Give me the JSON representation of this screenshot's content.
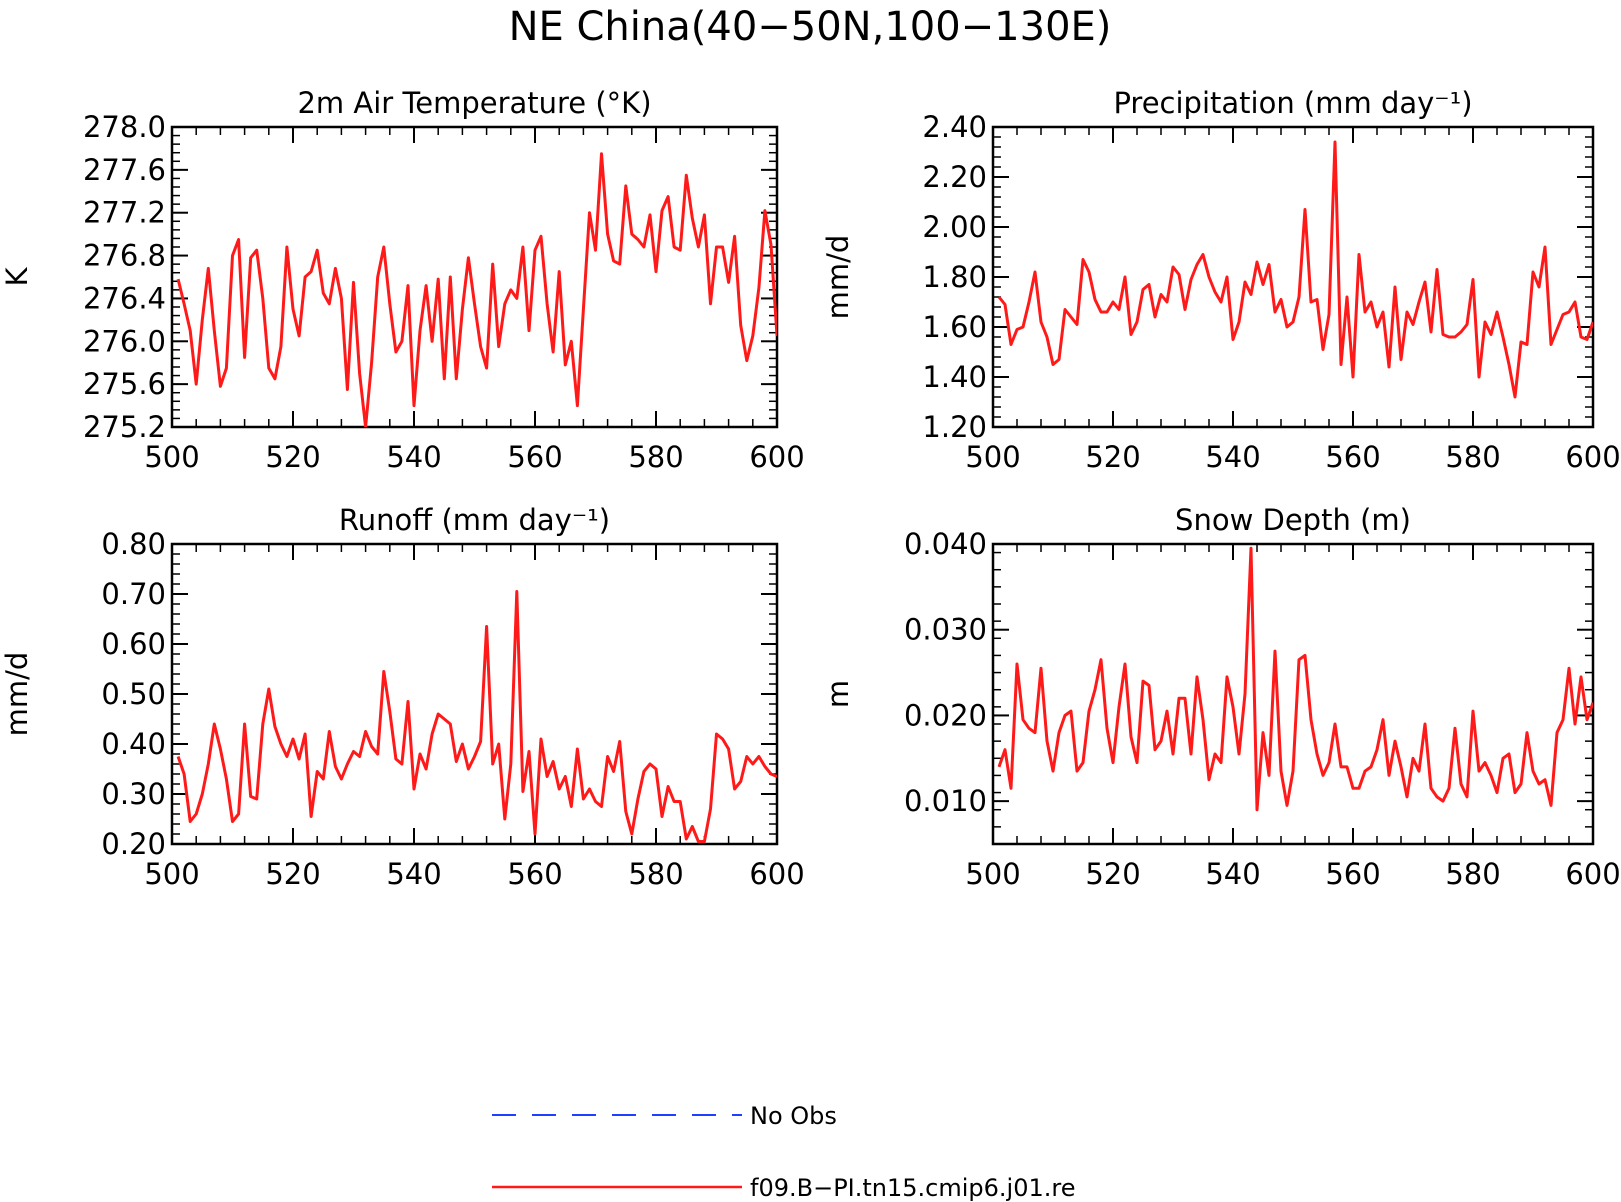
{
  "title": "NE China(40−50N,100−130E)",
  "legend": [
    {
      "label": "No Obs",
      "color": "#1f3fff",
      "dashed": true
    },
    {
      "label": "f09.B−PI.tn15.cmip6.j01.re",
      "color": "#ff1a1a",
      "dashed": false
    }
  ],
  "chart_data": [
    {
      "type": "line",
      "title": "2m Air Temperature (°K)",
      "xlabel": "",
      "ylabel": "K",
      "xlim": [
        500,
        600
      ],
      "ylim": [
        275.2,
        278.0
      ],
      "xticks": [
        "500",
        "520",
        "540",
        "560",
        "580",
        "600"
      ],
      "yticks": [
        "275.2",
        "275.6",
        "276.0",
        "276.4",
        "276.8",
        "277.2",
        "277.6",
        "278.0"
      ],
      "series": [
        {
          "name": "f09.B−PI.tn15.cmip6.j01.re",
          "color": "#ff1a1a",
          "x": [
            501,
            502,
            503,
            504,
            505,
            506,
            507,
            508,
            509,
            510,
            511,
            512,
            513,
            514,
            515,
            516,
            517,
            518,
            519,
            520,
            521,
            522,
            523,
            524,
            525,
            526,
            527,
            528,
            529,
            530,
            531,
            532,
            533,
            534,
            535,
            536,
            537,
            538,
            539,
            540,
            541,
            542,
            543,
            544,
            545,
            546,
            547,
            548,
            549,
            550,
            551,
            552,
            553,
            554,
            555,
            556,
            557,
            558,
            559,
            560,
            561,
            562,
            563,
            564,
            565,
            566,
            567,
            568,
            569,
            570,
            571,
            572,
            573,
            574,
            575,
            576,
            577,
            578,
            579,
            580,
            581,
            582,
            583,
            584,
            585,
            586,
            587,
            588,
            589,
            590,
            591,
            592,
            593,
            594,
            595,
            596,
            597,
            598,
            599,
            600
          ],
          "y": [
            276.58,
            276.35,
            276.1,
            275.6,
            276.2,
            276.68,
            276.1,
            275.58,
            275.75,
            276.8,
            276.95,
            275.85,
            276.78,
            276.85,
            276.4,
            275.75,
            275.65,
            275.95,
            276.88,
            276.3,
            276.05,
            276.6,
            276.65,
            276.85,
            276.45,
            276.35,
            276.68,
            276.4,
            275.55,
            276.55,
            275.7,
            275.2,
            275.8,
            276.6,
            276.88,
            276.35,
            275.9,
            276.0,
            276.52,
            275.4,
            276.1,
            276.52,
            276.0,
            276.58,
            275.65,
            276.6,
            275.65,
            276.3,
            276.78,
            276.35,
            275.95,
            275.75,
            276.72,
            275.95,
            276.35,
            276.48,
            276.4,
            276.88,
            276.1,
            276.85,
            276.98,
            276.35,
            275.9,
            276.65,
            275.78,
            276.0,
            275.4,
            276.3,
            277.2,
            276.85,
            277.75,
            277.0,
            276.75,
            276.72,
            277.45,
            277.0,
            276.95,
            276.88,
            277.18,
            276.65,
            277.22,
            277.35,
            276.88,
            276.85,
            277.55,
            277.15,
            276.88,
            277.18,
            276.35,
            276.88,
            276.88,
            276.55,
            276.98,
            276.15,
            275.82,
            276.05,
            276.5,
            277.22,
            276.9,
            276.05
          ]
        }
      ]
    },
    {
      "type": "line",
      "title": "Precipitation (mm day⁻¹)",
      "xlabel": "",
      "ylabel": "mm/d",
      "xlim": [
        500,
        600
      ],
      "ylim": [
        1.2,
        2.4
      ],
      "xticks": [
        "500",
        "520",
        "540",
        "560",
        "580",
        "600"
      ],
      "yticks": [
        "1.20",
        "1.40",
        "1.60",
        "1.80",
        "2.00",
        "2.20",
        "2.40"
      ],
      "series": [
        {
          "name": "f09.B−PI.tn15.cmip6.j01.re",
          "color": "#ff1a1a",
          "x": [
            501,
            502,
            503,
            504,
            505,
            506,
            507,
            508,
            509,
            510,
            511,
            512,
            513,
            514,
            515,
            516,
            517,
            518,
            519,
            520,
            521,
            522,
            523,
            524,
            525,
            526,
            527,
            528,
            529,
            530,
            531,
            532,
            533,
            534,
            535,
            536,
            537,
            538,
            539,
            540,
            541,
            542,
            543,
            544,
            545,
            546,
            547,
            548,
            549,
            550,
            551,
            552,
            553,
            554,
            555,
            556,
            557,
            558,
            559,
            560,
            561,
            562,
            563,
            564,
            565,
            566,
            567,
            568,
            569,
            570,
            571,
            572,
            573,
            574,
            575,
            576,
            577,
            578,
            579,
            580,
            581,
            582,
            583,
            584,
            585,
            586,
            587,
            588,
            589,
            590,
            591,
            592,
            593,
            594,
            595,
            596,
            597,
            598,
            599,
            600
          ],
          "y": [
            1.72,
            1.69,
            1.53,
            1.59,
            1.6,
            1.7,
            1.82,
            1.62,
            1.56,
            1.45,
            1.47,
            1.67,
            1.64,
            1.61,
            1.87,
            1.82,
            1.71,
            1.66,
            1.66,
            1.7,
            1.67,
            1.8,
            1.57,
            1.62,
            1.75,
            1.77,
            1.64,
            1.73,
            1.7,
            1.84,
            1.81,
            1.67,
            1.79,
            1.85,
            1.89,
            1.8,
            1.74,
            1.7,
            1.8,
            1.55,
            1.62,
            1.78,
            1.73,
            1.86,
            1.77,
            1.85,
            1.66,
            1.71,
            1.6,
            1.62,
            1.72,
            2.07,
            1.7,
            1.71,
            1.51,
            1.65,
            2.34,
            1.45,
            1.72,
            1.4,
            1.89,
            1.66,
            1.7,
            1.6,
            1.66,
            1.44,
            1.76,
            1.47,
            1.66,
            1.61,
            1.7,
            1.78,
            1.58,
            1.83,
            1.57,
            1.56,
            1.56,
            1.58,
            1.61,
            1.79,
            1.4,
            1.62,
            1.57,
            1.66,
            1.56,
            1.45,
            1.32,
            1.54,
            1.53,
            1.82,
            1.76,
            1.92,
            1.53,
            1.59,
            1.65,
            1.66,
            1.7,
            1.56,
            1.55,
            1.62
          ]
        }
      ]
    },
    {
      "type": "line",
      "title": "Runoff (mm day⁻¹)",
      "xlabel": "",
      "ylabel": "mm/d",
      "xlim": [
        500,
        600
      ],
      "ylim": [
        0.2,
        0.8
      ],
      "xticks": [
        "500",
        "520",
        "540",
        "560",
        "580",
        "600"
      ],
      "yticks": [
        "0.20",
        "0.30",
        "0.40",
        "0.50",
        "0.60",
        "0.70",
        "0.80"
      ],
      "series": [
        {
          "name": "f09.B−PI.tn15.cmip6.j01.re",
          "color": "#ff1a1a",
          "x": [
            501,
            502,
            503,
            504,
            505,
            506,
            507,
            508,
            509,
            510,
            511,
            512,
            513,
            514,
            515,
            516,
            517,
            518,
            519,
            520,
            521,
            522,
            523,
            524,
            525,
            526,
            527,
            528,
            529,
            530,
            531,
            532,
            533,
            534,
            535,
            536,
            537,
            538,
            539,
            540,
            541,
            542,
            543,
            544,
            545,
            546,
            547,
            548,
            549,
            550,
            551,
            552,
            553,
            554,
            555,
            556,
            557,
            558,
            559,
            560,
            561,
            562,
            563,
            564,
            565,
            566,
            567,
            568,
            569,
            570,
            571,
            572,
            573,
            574,
            575,
            576,
            577,
            578,
            579,
            580,
            581,
            582,
            583,
            584,
            585,
            586,
            587,
            588,
            589,
            590,
            591,
            592,
            593,
            594,
            595,
            596,
            597,
            598,
            599,
            600
          ],
          "y": [
            0.375,
            0.34,
            0.245,
            0.26,
            0.3,
            0.36,
            0.44,
            0.39,
            0.33,
            0.245,
            0.26,
            0.44,
            0.295,
            0.29,
            0.44,
            0.51,
            0.435,
            0.4,
            0.375,
            0.41,
            0.37,
            0.42,
            0.255,
            0.345,
            0.33,
            0.425,
            0.355,
            0.33,
            0.36,
            0.385,
            0.375,
            0.425,
            0.395,
            0.38,
            0.545,
            0.465,
            0.37,
            0.36,
            0.485,
            0.31,
            0.38,
            0.35,
            0.42,
            0.46,
            0.45,
            0.44,
            0.365,
            0.4,
            0.35,
            0.375,
            0.405,
            0.635,
            0.36,
            0.4,
            0.25,
            0.36,
            0.705,
            0.305,
            0.385,
            0.22,
            0.41,
            0.335,
            0.365,
            0.31,
            0.335,
            0.275,
            0.39,
            0.29,
            0.31,
            0.285,
            0.275,
            0.375,
            0.345,
            0.405,
            0.265,
            0.22,
            0.29,
            0.345,
            0.36,
            0.35,
            0.255,
            0.315,
            0.285,
            0.285,
            0.21,
            0.235,
            0.205,
            0.205,
            0.27,
            0.42,
            0.41,
            0.39,
            0.31,
            0.325,
            0.375,
            0.36,
            0.375,
            0.355,
            0.34,
            0.335
          ]
        }
      ]
    },
    {
      "type": "line",
      "title": "Snow Depth (m)",
      "xlabel": "",
      "ylabel": "m",
      "xlim": [
        500,
        600
      ],
      "ylim": [
        0.005,
        0.04
      ],
      "xticks": [
        "500",
        "520",
        "540",
        "560",
        "580",
        "600"
      ],
      "yticks": [
        "0.010",
        "0.020",
        "0.030",
        "0.040"
      ],
      "series": [
        {
          "name": "f09.B−PI.tn15.cmip6.j01.re",
          "color": "#ff1a1a",
          "x": [
            501,
            502,
            503,
            504,
            505,
            506,
            507,
            508,
            509,
            510,
            511,
            512,
            513,
            514,
            515,
            516,
            517,
            518,
            519,
            520,
            521,
            522,
            523,
            524,
            525,
            526,
            527,
            528,
            529,
            530,
            531,
            532,
            533,
            534,
            535,
            536,
            537,
            538,
            539,
            540,
            541,
            542,
            543,
            544,
            545,
            546,
            547,
            548,
            549,
            550,
            551,
            552,
            553,
            554,
            555,
            556,
            557,
            558,
            559,
            560,
            561,
            562,
            563,
            564,
            565,
            566,
            567,
            568,
            569,
            570,
            571,
            572,
            573,
            574,
            575,
            576,
            577,
            578,
            579,
            580,
            581,
            582,
            583,
            584,
            585,
            586,
            587,
            588,
            589,
            590,
            591,
            592,
            593,
            594,
            595,
            596,
            597,
            598,
            599,
            600
          ],
          "y": [
            0.014,
            0.016,
            0.0115,
            0.026,
            0.0195,
            0.0185,
            0.018,
            0.0255,
            0.017,
            0.0135,
            0.018,
            0.02,
            0.0205,
            0.0135,
            0.0145,
            0.0205,
            0.023,
            0.0265,
            0.0185,
            0.0145,
            0.021,
            0.026,
            0.0175,
            0.0145,
            0.024,
            0.0235,
            0.016,
            0.017,
            0.0205,
            0.0155,
            0.022,
            0.022,
            0.0155,
            0.0245,
            0.0195,
            0.0125,
            0.0155,
            0.0145,
            0.0245,
            0.021,
            0.0155,
            0.0225,
            0.0395,
            0.009,
            0.018,
            0.013,
            0.0275,
            0.0135,
            0.0095,
            0.0135,
            0.0265,
            0.027,
            0.0195,
            0.0155,
            0.013,
            0.0145,
            0.019,
            0.014,
            0.014,
            0.0115,
            0.0115,
            0.0135,
            0.014,
            0.016,
            0.0195,
            0.013,
            0.017,
            0.014,
            0.0105,
            0.015,
            0.0135,
            0.019,
            0.0115,
            0.0105,
            0.01,
            0.0115,
            0.0185,
            0.012,
            0.0105,
            0.0205,
            0.0135,
            0.0145,
            0.013,
            0.011,
            0.015,
            0.0155,
            0.011,
            0.012,
            0.018,
            0.0135,
            0.012,
            0.0125,
            0.0095,
            0.018,
            0.0195,
            0.0255,
            0.019,
            0.0245,
            0.0195,
            0.0215
          ]
        }
      ]
    }
  ]
}
